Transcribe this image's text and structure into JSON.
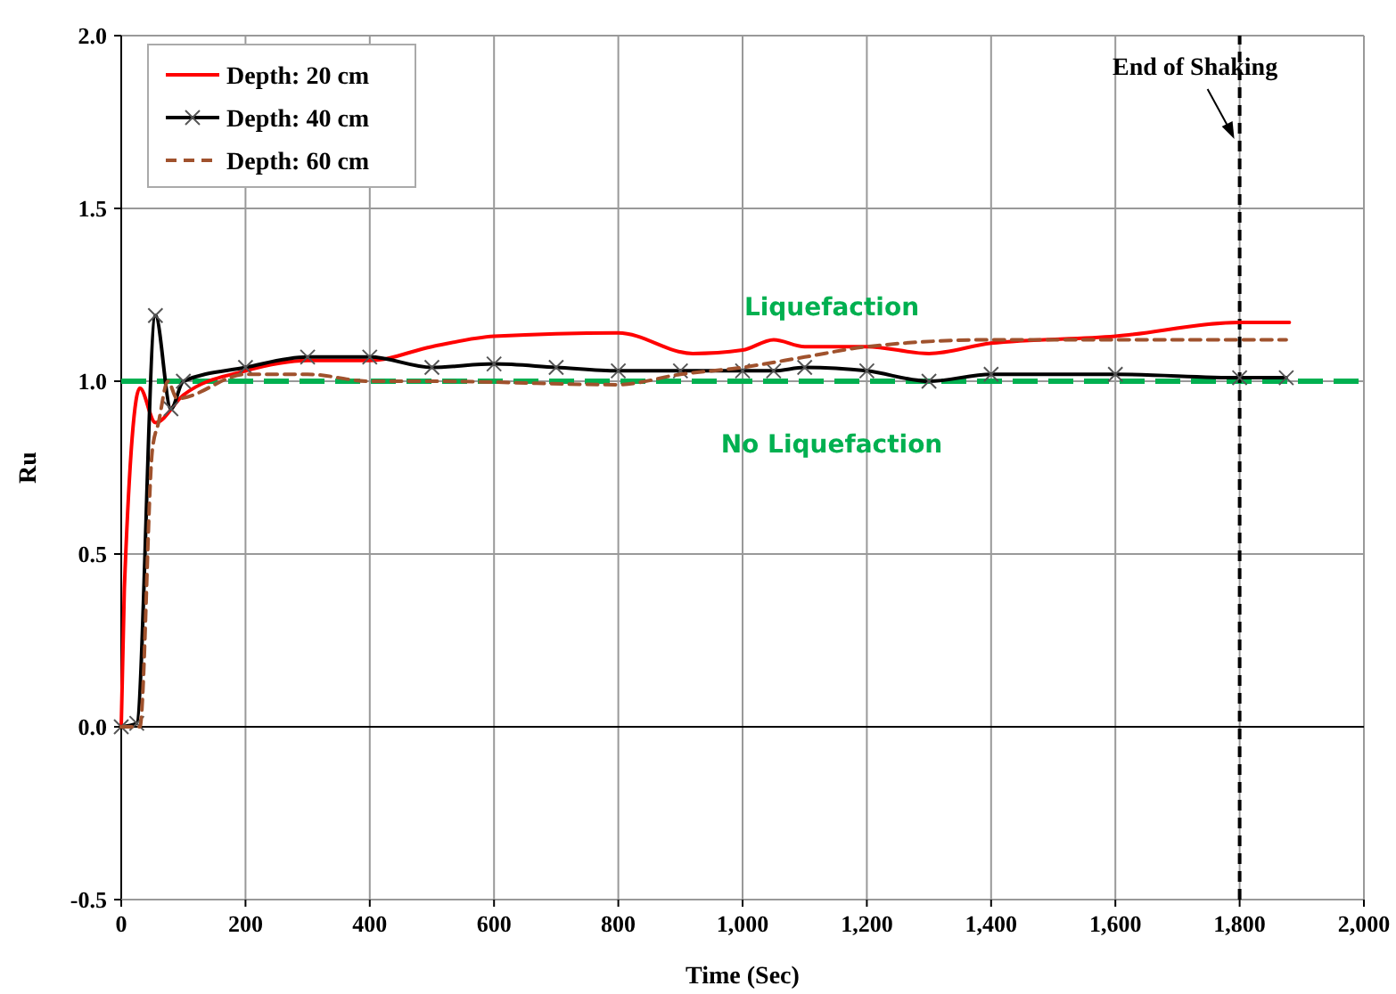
{
  "chart_data": {
    "type": "line",
    "xlabel": "Time (Sec)",
    "ylabel": "Ru",
    "xlim": [
      0,
      2000
    ],
    "ylim": [
      -0.5,
      2.0
    ],
    "xticks": [
      0,
      200,
      400,
      600,
      800,
      {
        "value": 1000,
        "label": "1,000"
      },
      {
        "value": 1200,
        "label": "1,200"
      },
      {
        "value": 1400,
        "label": "1,400"
      },
      {
        "value": 1600,
        "label": "1,600"
      },
      {
        "value": 1800,
        "label": "1,800"
      },
      {
        "value": 2000,
        "label": "2,000"
      }
    ],
    "yticks": [
      {
        "value": -0.5,
        "label": "-0.5"
      },
      {
        "value": 0,
        "label": "0.0"
      },
      {
        "value": 0.5,
        "label": "0.5"
      },
      {
        "value": 1,
        "label": "1.0"
      },
      {
        "value": 1.5,
        "label": "1.5"
      },
      {
        "value": 2,
        "label": "2.0"
      }
    ],
    "grid": true,
    "legend": "top left",
    "series": [
      {
        "name": "Depth: 20 cm",
        "color": "#ff0000",
        "line_style": "solid",
        "marker": "none",
        "x": [
          0,
          5,
          30,
          55,
          100,
          200,
          300,
          400,
          500,
          600,
          800,
          920,
          1000,
          1050,
          1100,
          1200,
          1300,
          1400,
          1600,
          1800,
          1880
        ],
        "values": [
          0,
          0.4,
          0.98,
          0.88,
          0.96,
          1.03,
          1.06,
          1.06,
          1.1,
          1.13,
          1.14,
          1.08,
          1.09,
          1.12,
          1.1,
          1.1,
          1.08,
          1.11,
          1.13,
          1.17,
          1.17
        ]
      },
      {
        "name": "Depth: 40 cm",
        "color": "#000000",
        "line_style": "solid",
        "marker": "cross",
        "x": [
          0,
          25,
          55,
          80,
          100,
          200,
          300,
          400,
          500,
          600,
          700,
          800,
          900,
          1000,
          1050,
          1100,
          1200,
          1300,
          1400,
          1600,
          1800,
          1875
        ],
        "values": [
          0,
          0.01,
          1.19,
          0.92,
          1.0,
          1.04,
          1.07,
          1.07,
          1.04,
          1.05,
          1.04,
          1.03,
          1.03,
          1.03,
          1.03,
          1.04,
          1.03,
          1.0,
          1.02,
          1.02,
          1.01,
          1.01
        ]
      },
      {
        "name": "Depth: 60 cm",
        "color": "#a0522d",
        "line_style": "dashed",
        "marker": "none",
        "x": [
          0,
          30,
          50,
          60,
          75,
          90,
          200,
          300,
          400,
          500,
          800,
          900,
          1000,
          1100,
          1200,
          1400,
          1800,
          1875
        ],
        "values": [
          0,
          0,
          0.8,
          0.88,
          1.0,
          0.95,
          1.02,
          1.02,
          1.0,
          1.0,
          0.99,
          1.02,
          1.04,
          1.07,
          1.1,
          1.12,
          1.12,
          1.12
        ]
      }
    ],
    "ref_lines": [
      {
        "axis": "y",
        "value": 1,
        "color": "#00b050",
        "line_style": "dashed"
      },
      {
        "axis": "x",
        "value": 1800,
        "label": "End of Shaking",
        "color": "#000000",
        "line_style": "dashed"
      }
    ],
    "annotations": [
      "Liquefaction",
      "No Liquefaction"
    ]
  }
}
